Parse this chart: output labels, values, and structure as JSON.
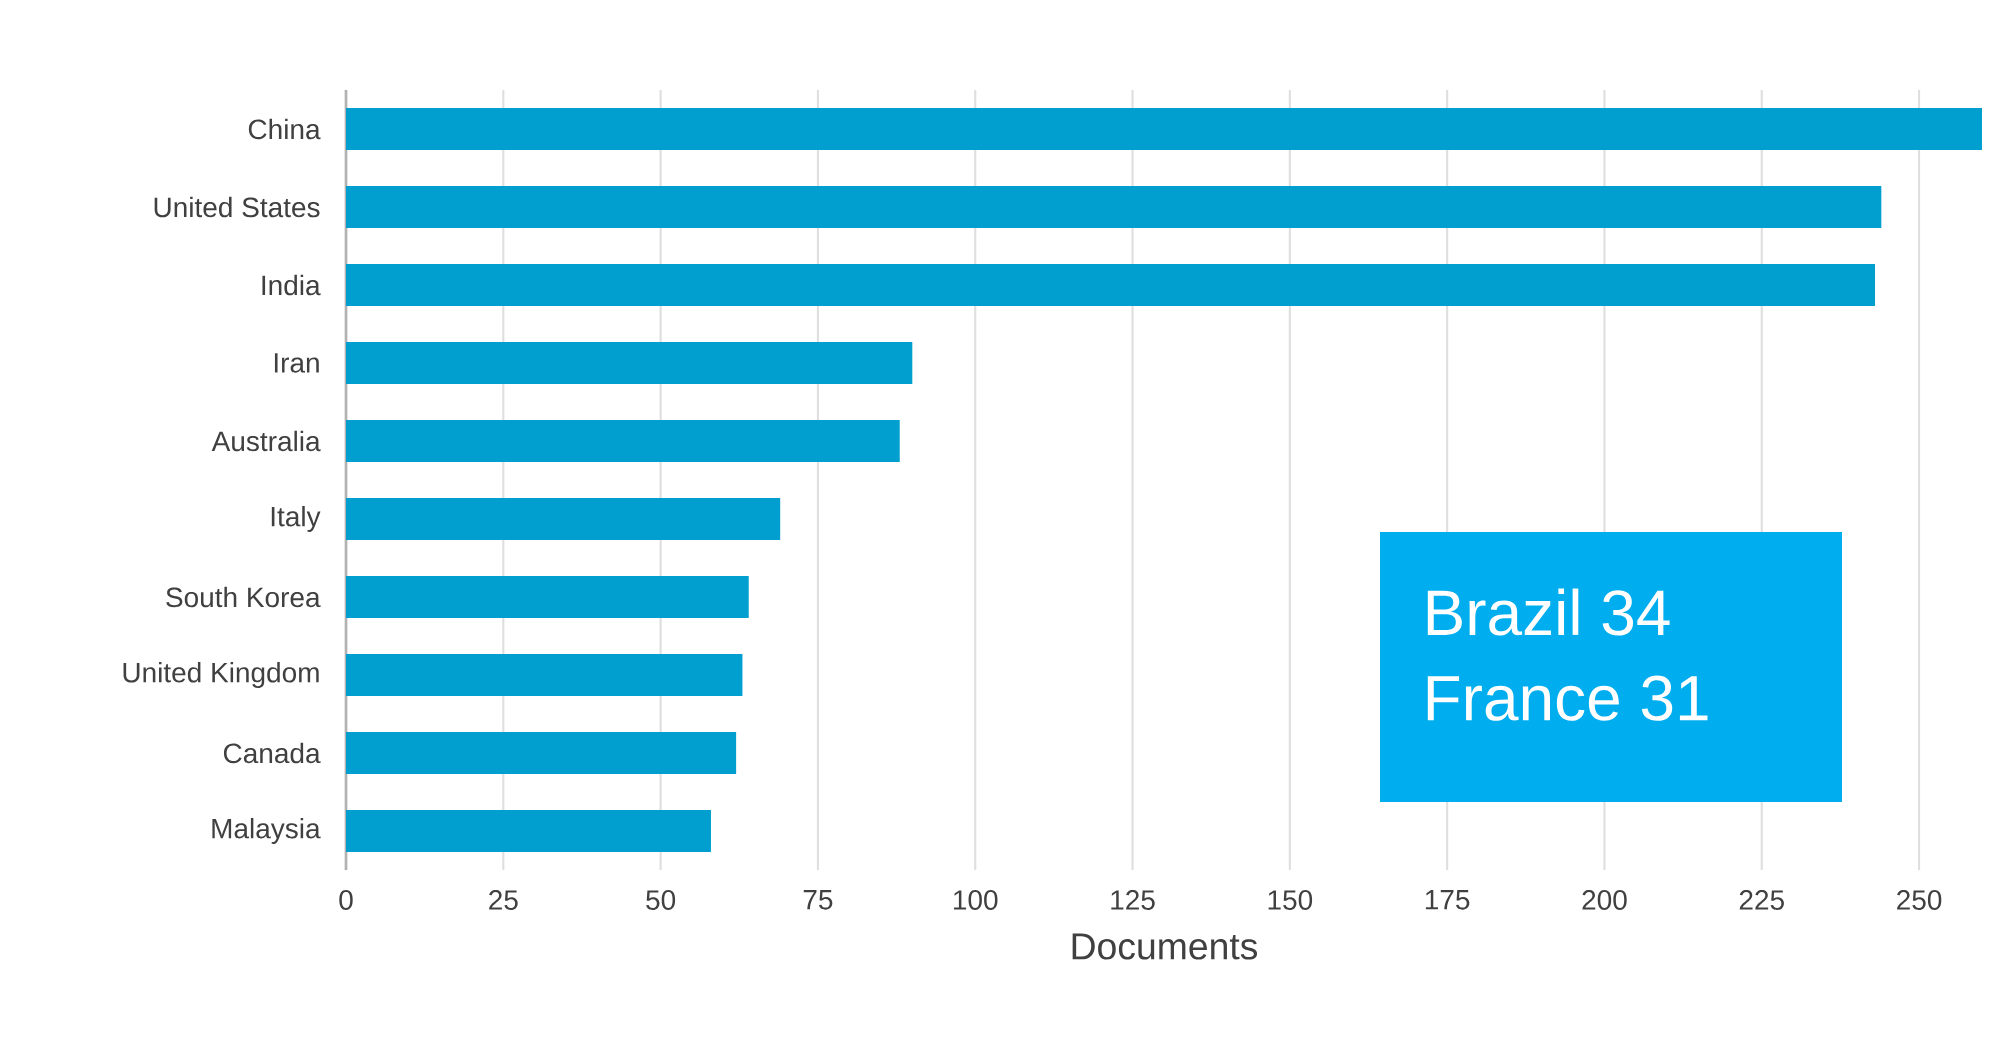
{
  "chart_data": {
    "type": "bar",
    "orientation": "horizontal",
    "categories": [
      "China",
      "United States",
      "India",
      "Iran",
      "Australia",
      "Italy",
      "South Korea",
      "United Kingdom",
      "Canada",
      "Malaysia"
    ],
    "values": [
      260,
      244,
      243,
      90,
      88,
      69,
      64,
      63,
      62,
      58
    ],
    "color": "#009fcf",
    "xlabel": "Documents",
    "xlim": [
      0,
      260
    ],
    "xticks": [
      0,
      25,
      50,
      75,
      100,
      125,
      150,
      175,
      200,
      225,
      250
    ],
    "grid": "x",
    "annotations": [
      "Brazil 34",
      "France 31"
    ]
  }
}
